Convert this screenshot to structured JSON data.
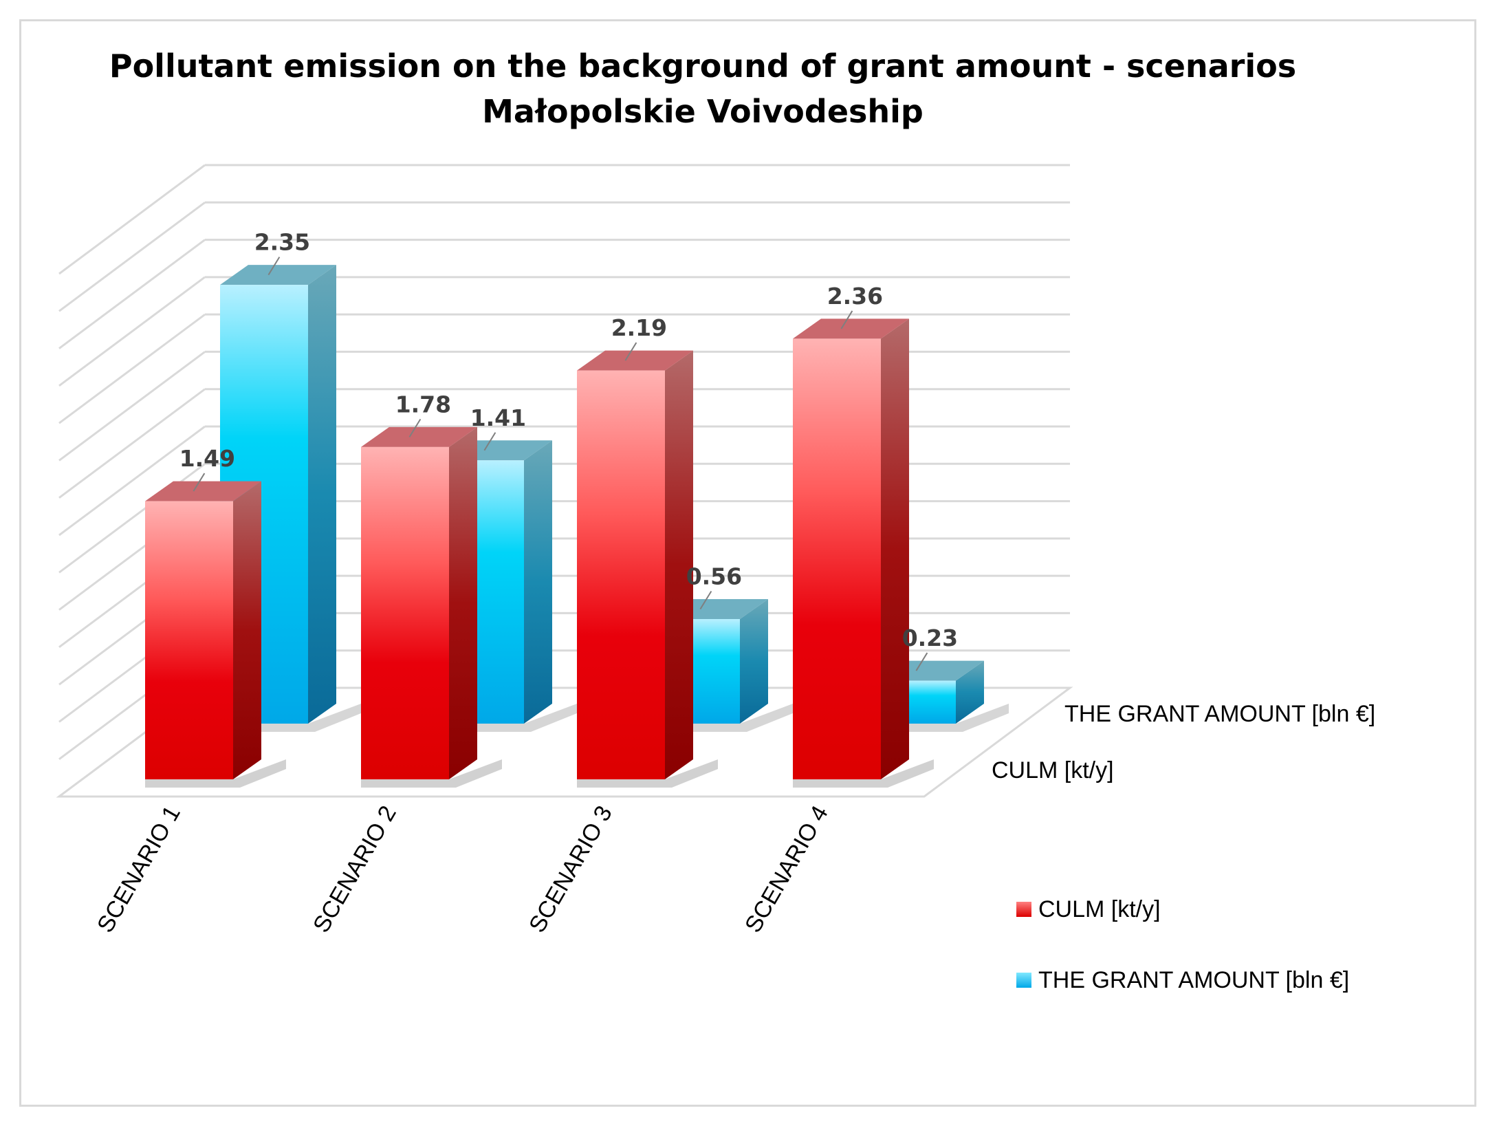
{
  "chart_data": {
    "type": "bar",
    "title": "Pollutant emission on the background of grant amount - scenarios",
    "subtitle": "Małopolskie Voivodeship",
    "categories": [
      "SCENARIO 1",
      "SCENARIO 2",
      "SCENARIO 3",
      "SCENARIO 4"
    ],
    "series": [
      {
        "name": "CULM [kt/y]",
        "values": [
          1.49,
          1.78,
          2.19,
          2.36
        ],
        "color": "#e8000b"
      },
      {
        "name": "THE GRANT AMOUNT [bln €]",
        "values": [
          2.35,
          1.41,
          0.56,
          0.23
        ],
        "color": "#00b4e8"
      }
    ],
    "depth_axis_labels": [
      "THE GRANT AMOUNT [bln €]",
      "CULM [kt/y]"
    ],
    "legend_position": "right",
    "grid": true,
    "style": "3d-column",
    "ylim": [
      0,
      2.8
    ]
  }
}
